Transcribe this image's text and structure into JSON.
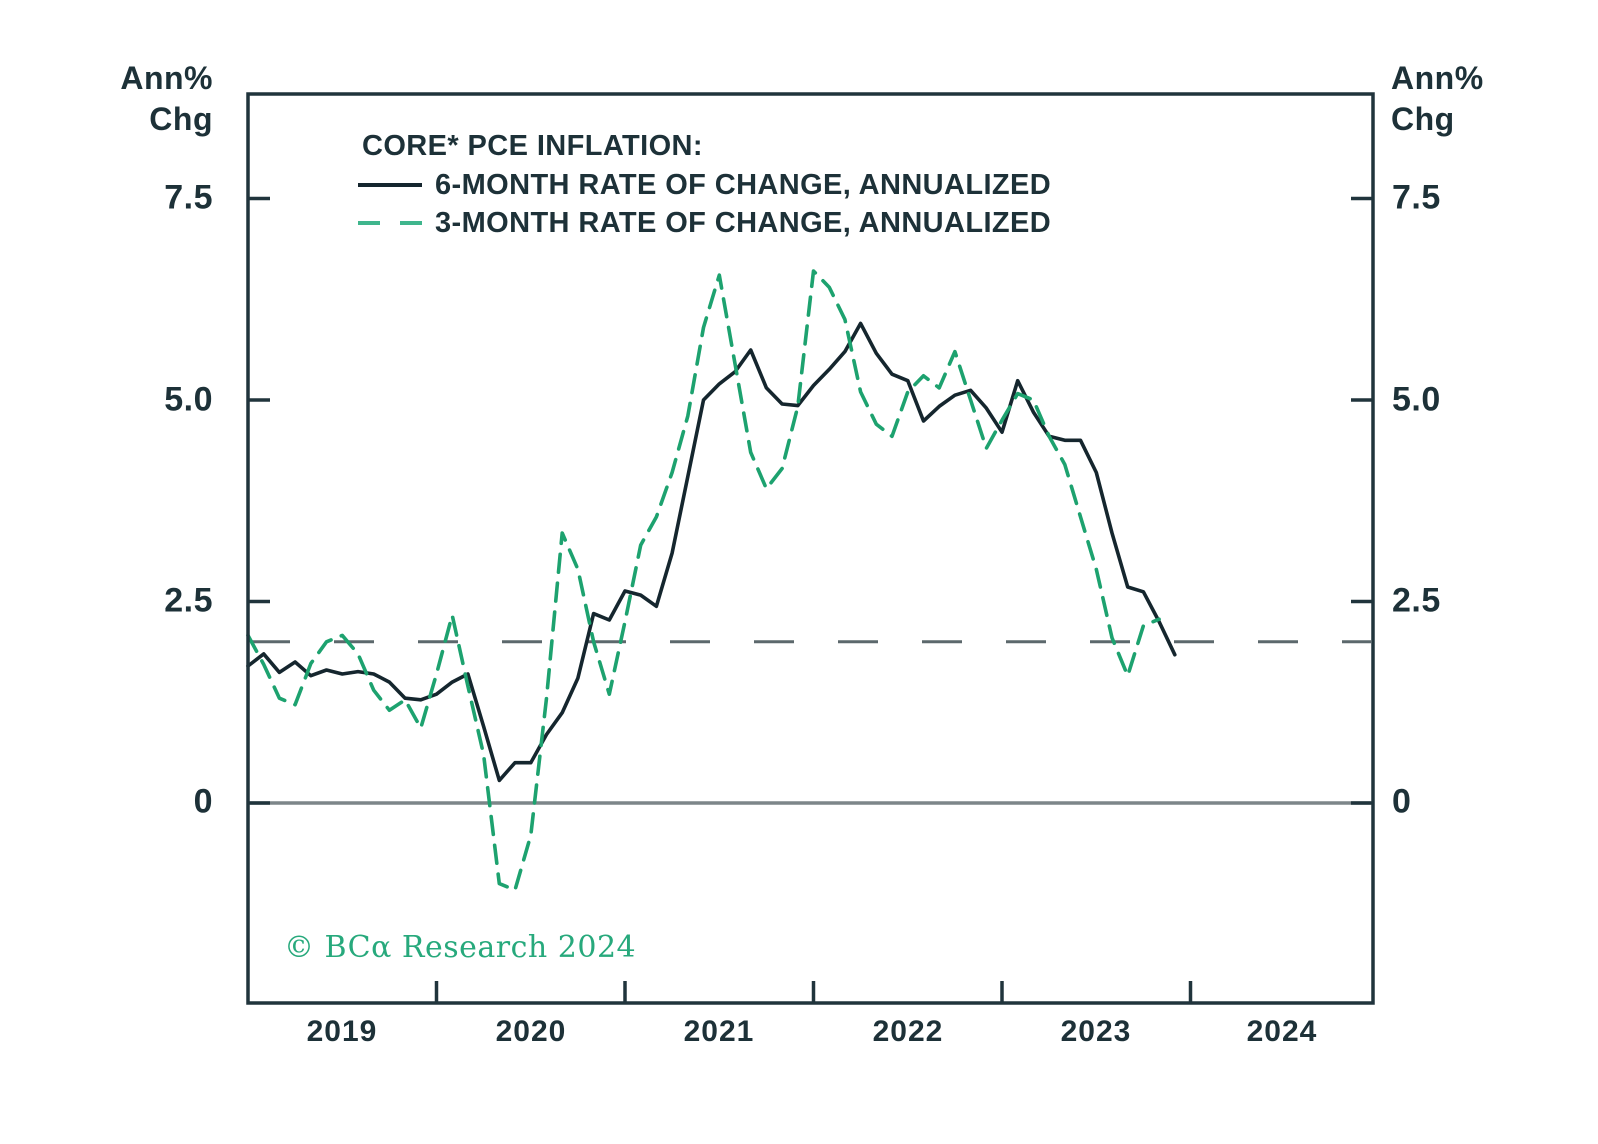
{
  "axes": {
    "unit_left": [
      "Ann%",
      "Chg"
    ],
    "unit_right": [
      "Ann%",
      "Chg"
    ],
    "y_ticks": [
      "7.5",
      "5.0",
      "2.5",
      "0"
    ],
    "x_ticks": [
      "2019",
      "2020",
      "2021",
      "2022",
      "2023",
      "2024"
    ]
  },
  "legend": {
    "title": "CORE* PCE INFLATION:",
    "series": [
      {
        "label": "6-MONTH RATE OF CHANGE, ANNUALIZED",
        "style": "solid",
        "swatch_color": "#15262e"
      },
      {
        "label": "3-MONTH RATE OF CHANGE, ANNUALIZED",
        "style": "dashed",
        "swatch_color": "#3fb68d"
      }
    ]
  },
  "copyright": {
    "text": "© BCα Research 2024",
    "color": "#27a97c"
  },
  "chart_data": {
    "type": "line",
    "title": "CORE* PCE INFLATION:",
    "ylabel": "Ann% Chg",
    "x_unit": "month",
    "x_start": "2019-01",
    "x_years": [
      "2019",
      "2020",
      "2021",
      "2022",
      "2023",
      "2024"
    ],
    "months_per_year": 12,
    "total_months": 72,
    "ylim_visible": [
      -2.52,
      8.8
    ],
    "y_tick_values": [
      7.5,
      5.0,
      2.5,
      0
    ],
    "grid": false,
    "legend_position": "top-left",
    "axis_color": "#20343c",
    "background": "#ffffff",
    "reference_lines": [
      {
        "label": "2 percent level",
        "value": 2.0,
        "style": "long-dash",
        "color": "#5c686c"
      },
      {
        "label": "zero line",
        "value": 0.0,
        "style": "solid",
        "color": "#7d8689"
      }
    ],
    "series": [
      {
        "name": "6-MONTH RATE OF CHANGE, ANNUALIZED",
        "style": "solid",
        "color": "#15262e",
        "start": "2019-01",
        "end": "2023-12",
        "values": [
          1.7,
          1.85,
          1.62,
          1.75,
          1.58,
          1.65,
          1.6,
          1.63,
          1.6,
          1.5,
          1.3,
          1.28,
          1.35,
          1.5,
          1.6,
          0.95,
          0.28,
          0.5,
          0.5,
          0.85,
          1.12,
          1.55,
          2.35,
          2.27,
          2.63,
          2.58,
          2.44,
          3.1,
          4.05,
          5.0,
          5.2,
          5.35,
          5.62,
          5.15,
          4.95,
          4.93,
          5.18,
          5.38,
          5.6,
          5.95,
          5.58,
          5.32,
          5.24,
          4.74,
          4.92,
          5.06,
          5.12,
          4.9,
          4.6,
          5.24,
          4.85,
          4.55,
          4.5,
          4.5,
          4.1,
          3.35,
          2.68,
          2.62,
          2.25,
          1.84
        ]
      },
      {
        "name": "3-MONTH RATE OF CHANGE, ANNUALIZED",
        "style": "dashed",
        "color": "#1da26f",
        "start": "2019-01",
        "end": "2023-11",
        "values": [
          2.08,
          1.72,
          1.3,
          1.22,
          1.73,
          2.0,
          2.08,
          1.85,
          1.4,
          1.15,
          1.28,
          0.93,
          1.6,
          2.33,
          1.45,
          0.6,
          -1.0,
          -1.08,
          -0.4,
          1.3,
          3.35,
          2.9,
          2.0,
          1.35,
          2.25,
          3.2,
          3.55,
          4.1,
          4.8,
          5.9,
          6.55,
          5.45,
          4.35,
          3.9,
          4.15,
          4.92,
          6.6,
          6.4,
          6.0,
          5.1,
          4.7,
          4.55,
          5.1,
          5.3,
          5.15,
          5.6,
          5.0,
          4.4,
          4.75,
          5.08,
          5.0,
          4.55,
          4.2,
          3.55,
          2.9,
          2.05,
          1.58,
          2.2,
          2.28
        ]
      }
    ]
  }
}
